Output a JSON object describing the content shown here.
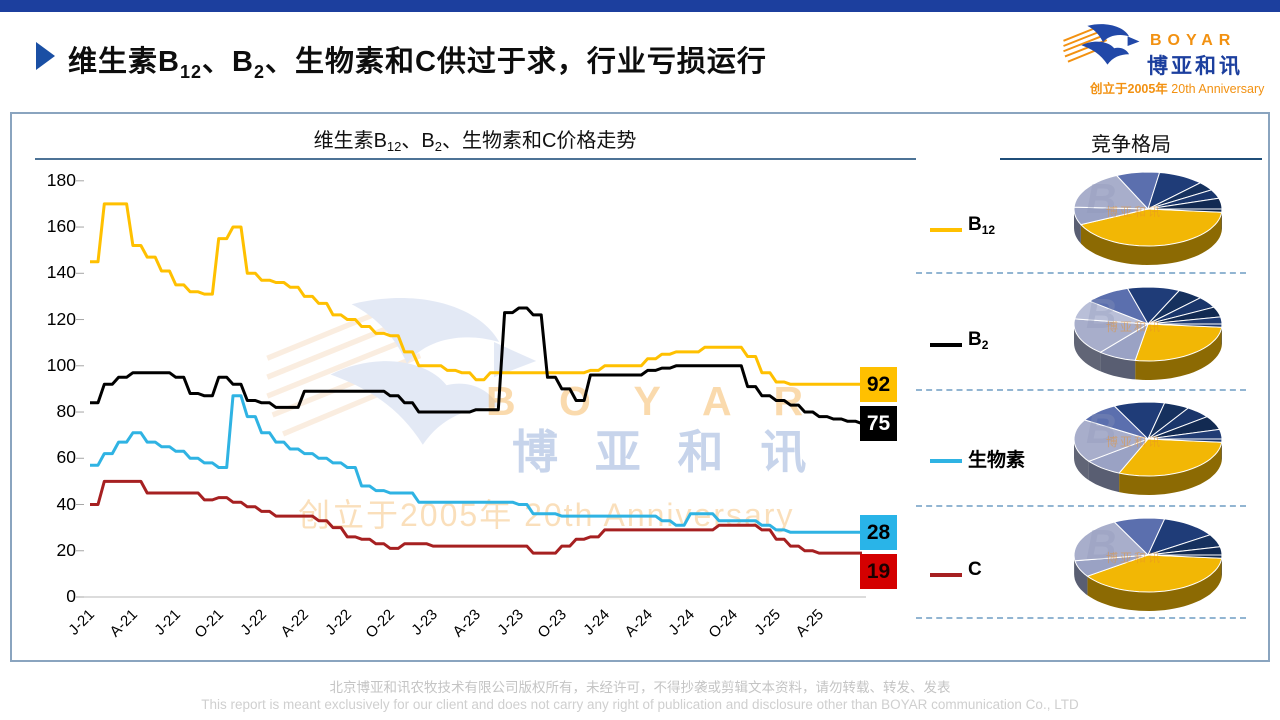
{
  "header": {
    "t1": "维生素B",
    "s1": "12",
    "t2": "、B",
    "s2": "2",
    "t3": "、生物素和C供过于求，行业亏损运行"
  },
  "logo": {
    "en": "BOYAR",
    "cn": "博亚和讯",
    "anniversary_cn": "创立于2005年",
    "anniversary_en": "20th Anniversary"
  },
  "chart_data": {
    "type": "line",
    "title": {
      "t1": "维生素B",
      "s1": "12",
      "t2": "、B",
      "s2": "2",
      "t3": "、生物素和C价格走势"
    },
    "x_tick_labels": [
      "J-21",
      "A-21",
      "J-21",
      "O-21",
      "J-22",
      "A-22",
      "J-22",
      "O-22",
      "J-23",
      "A-23",
      "J-23",
      "O-23",
      "J-24",
      "A-24",
      "J-24",
      "O-24",
      "J-25",
      "A-25"
    ],
    "x_note": "monthly points Jan-2021 to Jul-2025, ticks quarterly",
    "y_ticks": [
      0,
      20,
      40,
      60,
      80,
      100,
      120,
      140,
      160,
      180
    ],
    "ylim": [
      0,
      180
    ],
    "grid": "baseline-only",
    "legend_position": "right",
    "series": [
      {
        "name": "B12",
        "label_main": "B",
        "label_sub": "12",
        "color": "#FFC000",
        "box_color": "#FFC000",
        "end_label": "92",
        "end_text": "#000000",
        "values": [
          145,
          170,
          170,
          152,
          147,
          141,
          135,
          132,
          131,
          155,
          160,
          140,
          137,
          136,
          134,
          130,
          127,
          122,
          120,
          117,
          114,
          113,
          106,
          100,
          100,
          98,
          97,
          94,
          97,
          97,
          97,
          97,
          97,
          97,
          97,
          98,
          100,
          100,
          100,
          103,
          105,
          106,
          106,
          108,
          108,
          108,
          104,
          97,
          93,
          92,
          92,
          92,
          92,
          92,
          92
        ]
      },
      {
        "name": "B2",
        "label_main": "B",
        "label_sub": "2",
        "color": "#000000",
        "box_color": "#000000",
        "end_label": "75",
        "end_text": "#FFFFFF",
        "values": [
          84,
          92,
          95,
          97,
          97,
          97,
          95,
          88,
          87,
          95,
          92,
          85,
          84,
          82,
          82,
          89,
          89,
          89,
          89,
          89,
          89,
          87,
          84,
          80,
          80,
          80,
          80,
          81,
          81,
          123,
          125,
          122,
          95,
          90,
          85,
          96,
          96,
          96,
          96,
          98,
          99,
          100,
          100,
          100,
          100,
          100,
          91,
          87,
          85,
          83,
          80,
          78,
          77,
          76,
          75
        ]
      },
      {
        "name": "生物素",
        "label_main": "生物素",
        "label_sub": "",
        "color": "#2FB3E3",
        "box_color": "#29B4E8",
        "end_label": "28",
        "end_text": "#000000",
        "values": [
          57,
          62,
          67,
          71,
          67,
          65,
          63,
          60,
          58,
          56,
          87,
          78,
          71,
          67,
          64,
          62,
          60,
          58,
          56,
          48,
          46,
          45,
          45,
          41,
          41,
          41,
          41,
          41,
          41,
          41,
          40,
          36,
          36,
          35,
          35,
          35,
          35,
          35,
          35,
          35,
          33,
          31,
          36,
          36,
          33,
          33,
          33,
          31,
          29,
          28,
          28,
          28,
          28,
          28,
          28
        ]
      },
      {
        "name": "C",
        "label_main": "C",
        "label_sub": "",
        "color": "#A62021",
        "box_color": "#D40000",
        "end_label": "19",
        "end_text": "#1A0000",
        "values": [
          40,
          50,
          50,
          50,
          45,
          45,
          45,
          45,
          42,
          43,
          41,
          39,
          37,
          35,
          35,
          35,
          33,
          30,
          26,
          25,
          23,
          21,
          23,
          23,
          22,
          22,
          22,
          22,
          22,
          22,
          22,
          19,
          19,
          22,
          25,
          26,
          29,
          29,
          29,
          29,
          29,
          29,
          29,
          29,
          31,
          31,
          31,
          29,
          25,
          22,
          20,
          19,
          19,
          19,
          19
        ]
      }
    ]
  },
  "competition": {
    "title": "竞争格局",
    "watermark": "博亚和讯",
    "pies": [
      {
        "name": "B12",
        "slices": [
          {
            "color": "#F2B705",
            "deg": 150
          },
          {
            "color": "#9AA2C4",
            "deg": 28
          },
          {
            "color": "#A8AECB",
            "deg": 62
          },
          {
            "color": "#5B6FAE",
            "deg": 34
          },
          {
            "color": "#1F3C78",
            "deg": 36
          },
          {
            "color": "#16315E",
            "deg": 14
          },
          {
            "color": "#1A366B",
            "deg": 14
          },
          {
            "color": "#122A52",
            "deg": 22
          }
        ]
      },
      {
        "name": "B2",
        "slices": [
          {
            "color": "#F2B705",
            "deg": 95
          },
          {
            "color": "#9AA2C4",
            "deg": 30
          },
          {
            "color": "#A8AECB",
            "deg": 58
          },
          {
            "color": "#B9BFD8",
            "deg": 30
          },
          {
            "color": "#5B6FAE",
            "deg": 36
          },
          {
            "color": "#1F3C78",
            "deg": 41
          },
          {
            "color": "#16315E",
            "deg": 20
          },
          {
            "color": "#1A366B",
            "deg": 18
          },
          {
            "color": "#122A52",
            "deg": 16
          },
          {
            "color": "#203C74",
            "deg": 16
          }
        ]
      },
      {
        "name": "生物素",
        "slices": [
          {
            "color": "#F2B705",
            "deg": 108
          },
          {
            "color": "#9AA2C4",
            "deg": 30
          },
          {
            "color": "#A8AECB",
            "deg": 68
          },
          {
            "color": "#5B6FAE",
            "deg": 32
          },
          {
            "color": "#1F3C78",
            "deg": 40
          },
          {
            "color": "#16315E",
            "deg": 20
          },
          {
            "color": "#1A366B",
            "deg": 20
          },
          {
            "color": "#122A52",
            "deg": 22
          },
          {
            "color": "#203C74",
            "deg": 20
          }
        ]
      },
      {
        "name": "C",
        "slices": [
          {
            "color": "#F2B705",
            "deg": 140
          },
          {
            "color": "#9AA2C4",
            "deg": 26
          },
          {
            "color": "#A8AECB",
            "deg": 72
          },
          {
            "color": "#5B6FAE",
            "deg": 40
          },
          {
            "color": "#1F3C78",
            "deg": 44
          },
          {
            "color": "#16315E",
            "deg": 20
          },
          {
            "color": "#122A52",
            "deg": 18
          }
        ]
      }
    ]
  },
  "watermark": {
    "en": "B O Y A R",
    "cn": "博 亚 和 讯",
    "line2": "创立于2005年 20th Anniversary"
  },
  "footer": {
    "cn": "北京博亚和讯农牧技术有限公司版权所有，未经许可，不得抄袭或剪辑文本资料，请勿转载、转发、发表",
    "en": "This report is meant exclusively for our client and does not carry any right of publication and disclosure other than BOYAR communication Co., LTD"
  }
}
